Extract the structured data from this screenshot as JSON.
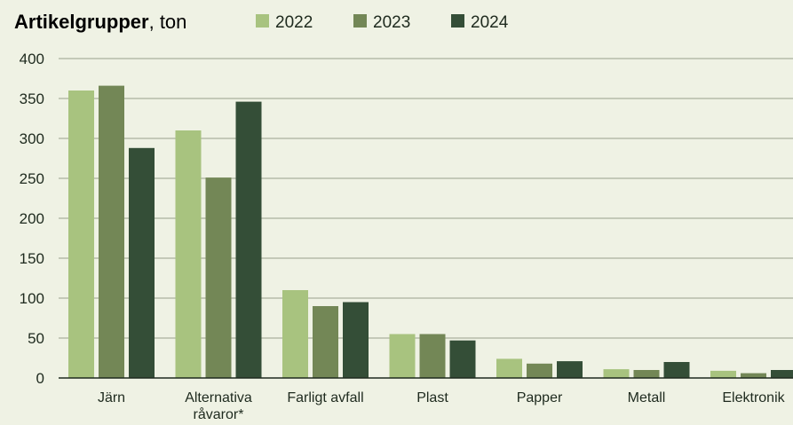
{
  "title": {
    "main": "Artikelgrupper",
    "suffix": ", ton"
  },
  "chart_data": {
    "type": "bar",
    "title": "Artikelgrupper, ton",
    "categories": [
      "Järn",
      "Alternativa råvaror*",
      "Farligt avfall",
      "Plast",
      "Papper",
      "Metall",
      "Elektronik"
    ],
    "category_lines": [
      [
        "Järn"
      ],
      [
        "Alternativa",
        "råvaror*"
      ],
      [
        "Farligt avfall"
      ],
      [
        "Plast"
      ],
      [
        "Papper"
      ],
      [
        "Metall"
      ],
      [
        "Elektronik"
      ]
    ],
    "series": [
      {
        "name": "2022",
        "color": "#a8c37f",
        "values": [
          360,
          310,
          110,
          55,
          24,
          11,
          9
        ]
      },
      {
        "name": "2023",
        "color": "#738756",
        "values": [
          366,
          251,
          90,
          55,
          18,
          10,
          6
        ]
      },
      {
        "name": "2024",
        "color": "#344e37",
        "values": [
          288,
          346,
          95,
          47,
          21,
          20,
          10
        ]
      }
    ],
    "ylim": [
      0,
      400
    ],
    "yticks": [
      0,
      50,
      100,
      150,
      200,
      250,
      300,
      350,
      400
    ],
    "xlabel": "",
    "ylabel": "",
    "grid": true,
    "legend_position": "top"
  }
}
